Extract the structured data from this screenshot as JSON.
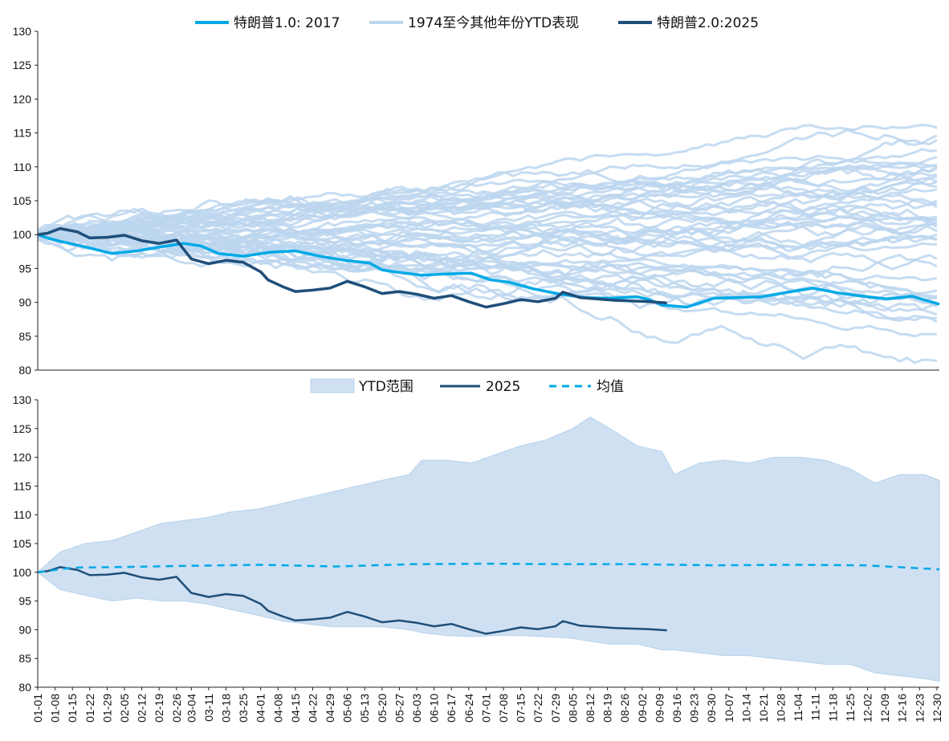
{
  "colors": {
    "trump1": "#00a9e6",
    "others": "#bcd6ee",
    "trump2": "#1f4e79",
    "range_fill": "#cfe0f2",
    "range_edge": "#b7d1ec",
    "mean": "#00a9e6"
  },
  "chart_data": [
    {
      "type": "line",
      "legend": [
        {
          "label": "特朗普1.0: 2017",
          "key": "trump1"
        },
        {
          "label": "1974至今其他年份YTD表现",
          "key": "others"
        },
        {
          "label": "特朗普2.0:2025",
          "key": "trump2"
        }
      ],
      "yticks": [
        80,
        85,
        90,
        95,
        100,
        105,
        110,
        115,
        120,
        125,
        130
      ],
      "ylim": [
        80,
        130
      ],
      "x_range": [
        "01-01",
        "12-31"
      ],
      "series": [
        {
          "name": "特朗普1.0: 2017",
          "x": [
            "01-01",
            "01-05",
            "01-10",
            "01-20",
            "01-31",
            "02-10",
            "02-20",
            "03-01",
            "03-08",
            "03-15",
            "03-25",
            "04-05",
            "04-15",
            "04-25",
            "05-05",
            "05-15",
            "05-20",
            "05-25",
            "06-05",
            "06-15",
            "06-25",
            "07-03",
            "07-10",
            "07-20",
            "07-31",
            "08-10",
            "08-20",
            "08-31",
            "09-05",
            "09-10",
            "09-20",
            "10-01",
            "10-10",
            "10-20",
            "10-31",
            "11-10",
            "11-20",
            "11-30",
            "12-10",
            "12-20",
            "12-31"
          ],
          "values": [
            100,
            99.5,
            99,
            98.2,
            97.2,
            97.6,
            98.2,
            98.7,
            98.3,
            97.2,
            96.8,
            97.4,
            97.6,
            96.8,
            96.2,
            95.8,
            94.8,
            94.5,
            94,
            94.2,
            94.3,
            93.3,
            93,
            92,
            91.2,
            90.7,
            90.6,
            90.8,
            90.4,
            89.6,
            89.3,
            90.6,
            90.7,
            90.8,
            91.5,
            92.1,
            91.4,
            90.9,
            90.5,
            90.9,
            89.7
          ]
        },
        {
          "name": "特朗普2.0:2025",
          "x": [
            "01-01",
            "01-05",
            "01-10",
            "01-17",
            "01-22",
            "01-29",
            "02-05",
            "02-12",
            "02-19",
            "02-26",
            "03-04",
            "03-11",
            "03-18",
            "03-25",
            "04-01",
            "04-04",
            "04-10",
            "04-15",
            "04-22",
            "04-29",
            "05-06",
            "05-13",
            "05-20",
            "05-27",
            "06-03",
            "06-10",
            "06-17",
            "06-24",
            "07-01",
            "07-08",
            "07-15",
            "07-22",
            "07-29",
            "08-01",
            "08-08",
            "08-15",
            "08-22",
            "08-29",
            "09-05",
            "09-12"
          ],
          "values": [
            100,
            100.2,
            100.9,
            100.4,
            99.5,
            99.6,
            99.9,
            99.1,
            98.7,
            99.2,
            96.4,
            95.7,
            96.2,
            95.9,
            94.5,
            93.3,
            92.3,
            91.6,
            91.8,
            92.1,
            93.1,
            92.3,
            91.3,
            91.6,
            91.2,
            90.6,
            91,
            90.1,
            89.3,
            89.8,
            90.4,
            90.1,
            90.6,
            91.5,
            90.7,
            90.5,
            90.3,
            90.2,
            90.1,
            89.9
          ]
        }
      ]
    },
    {
      "type": "area",
      "legend": [
        {
          "label": "YTD范围",
          "key": "range_fill"
        },
        {
          "label": "2025",
          "key": "trump2"
        },
        {
          "label": "均值",
          "key": "mean"
        }
      ],
      "yticks": [
        80,
        85,
        90,
        95,
        100,
        105,
        110,
        115,
        120,
        125,
        130
      ],
      "ylim": [
        80,
        130
      ],
      "xticks": [
        "01-01",
        "01-08",
        "01-15",
        "01-22",
        "01-29",
        "02-05",
        "02-12",
        "02-19",
        "02-26",
        "03-04",
        "03-11",
        "03-18",
        "03-25",
        "04-01",
        "04-08",
        "04-15",
        "04-22",
        "04-29",
        "05-06",
        "05-13",
        "05-20",
        "05-27",
        "06-03",
        "06-10",
        "06-17",
        "06-24",
        "07-01",
        "07-08",
        "07-15",
        "07-22",
        "07-29",
        "08-05",
        "08-12",
        "08-19",
        "08-26",
        "09-02",
        "09-09",
        "09-16",
        "09-23",
        "09-30",
        "10-07",
        "10-14",
        "10-21",
        "10-28",
        "11-04",
        "11-11",
        "11-18",
        "11-25",
        "12-02",
        "12-09",
        "12-16",
        "12-23",
        "12-30"
      ],
      "range": {
        "x": [
          "01-01",
          "01-10",
          "01-20",
          "01-31",
          "02-10",
          "02-20",
          "03-01",
          "03-10",
          "03-20",
          "03-31",
          "04-10",
          "04-20",
          "04-30",
          "05-10",
          "05-20",
          "05-31",
          "06-05",
          "06-15",
          "06-25",
          "07-05",
          "07-15",
          "07-25",
          "08-05",
          "08-12",
          "08-20",
          "08-31",
          "09-10",
          "09-15",
          "09-25",
          "10-05",
          "10-15",
          "10-25",
          "11-05",
          "11-15",
          "11-25",
          "12-05",
          "12-15",
          "12-25",
          "12-31"
        ],
        "max": [
          100,
          103.5,
          105,
          105.5,
          107,
          108.5,
          109,
          109.5,
          110.5,
          111,
          112,
          113,
          114,
          115,
          116,
          117,
          119.5,
          119.5,
          119,
          120.5,
          122,
          123,
          125,
          127,
          125,
          122,
          121,
          117,
          119,
          119.5,
          119,
          120,
          120,
          119.5,
          118,
          115.5,
          117,
          117,
          116
        ],
        "min": [
          100,
          97,
          96,
          95,
          95.5,
          95,
          95,
          94.5,
          93.5,
          92.5,
          91.5,
          91,
          90.5,
          90.5,
          90.5,
          90,
          89.5,
          89,
          88.8,
          89,
          89,
          88.8,
          88.5,
          88,
          87.5,
          87.5,
          86.5,
          86.5,
          86,
          85.5,
          85.5,
          85,
          84.5,
          84,
          84,
          82.5,
          82,
          81.5,
          81
        ]
      },
      "series": [
        {
          "name": "2025",
          "x": [
            "01-01",
            "01-05",
            "01-10",
            "01-17",
            "01-22",
            "01-29",
            "02-05",
            "02-12",
            "02-19",
            "02-26",
            "03-04",
            "03-11",
            "03-18",
            "03-25",
            "04-01",
            "04-04",
            "04-10",
            "04-15",
            "04-22",
            "04-29",
            "05-06",
            "05-13",
            "05-20",
            "05-27",
            "06-03",
            "06-10",
            "06-17",
            "06-24",
            "07-01",
            "07-08",
            "07-15",
            "07-22",
            "07-29",
            "08-01",
            "08-08",
            "08-15",
            "08-22",
            "08-29",
            "09-05",
            "09-12"
          ],
          "values": [
            100,
            100.2,
            100.9,
            100.4,
            99.5,
            99.6,
            99.9,
            99.1,
            98.7,
            99.2,
            96.4,
            95.7,
            96.2,
            95.9,
            94.5,
            93.3,
            92.3,
            91.6,
            91.8,
            92.1,
            93.1,
            92.3,
            91.3,
            91.6,
            91.2,
            90.6,
            91,
            90.1,
            89.3,
            89.8,
            90.4,
            90.1,
            90.6,
            91.5,
            90.7,
            90.5,
            90.3,
            90.2,
            90.1,
            89.9
          ]
        },
        {
          "name": "均值",
          "dashed": true,
          "x": [
            "01-01",
            "01-15",
            "02-01",
            "03-01",
            "04-01",
            "05-01",
            "06-01",
            "07-01",
            "08-01",
            "09-01",
            "10-01",
            "11-01",
            "12-01",
            "12-31"
          ],
          "values": [
            100,
            100.8,
            100.9,
            101.1,
            101.3,
            101,
            101.4,
            101.5,
            101.4,
            101.4,
            101.2,
            101.3,
            101.2,
            100.5
          ]
        }
      ]
    }
  ]
}
